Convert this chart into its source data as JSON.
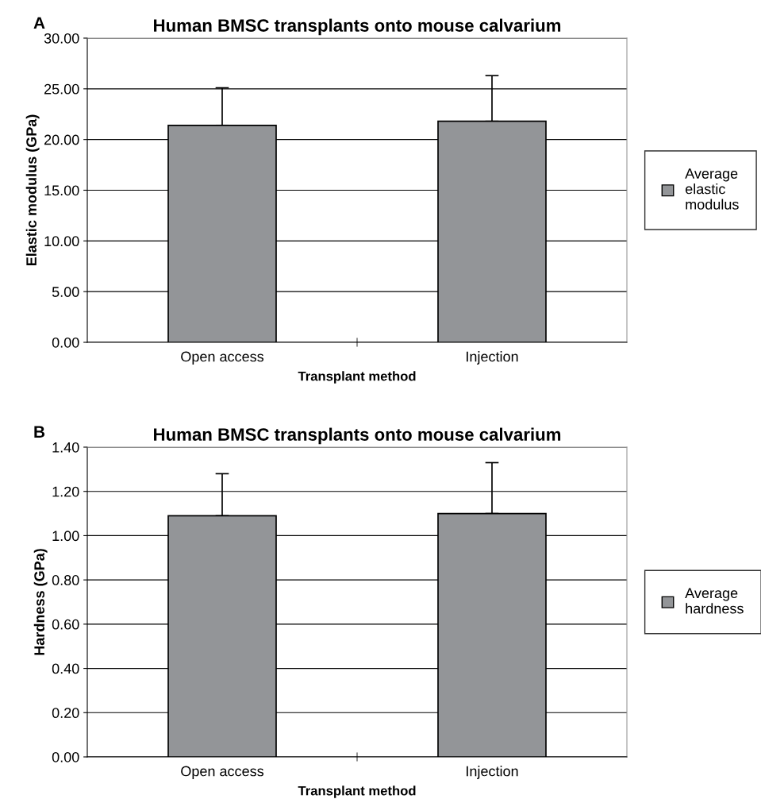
{
  "chart_data": [
    {
      "type": "bar",
      "title": "Human BMSC transplants onto mouse calvarium",
      "xlabel": "Transplant method",
      "ylabel": "Elastic modulus (GPa)",
      "annotations": [
        "A"
      ],
      "categories": [
        "Open access",
        "Injection"
      ],
      "series": [
        {
          "name": "Average\nelastic\nmodulus",
          "color": "#939598",
          "values": [
            21.4,
            21.8
          ],
          "errors": [
            [
              21.4,
              25.1
            ],
            [
              21.8,
              26.3
            ]
          ]
        }
      ],
      "ylim": [
        0,
        30
      ],
      "yticks": [
        {
          "value": 0,
          "label": "0.00"
        },
        {
          "value": 5,
          "label": "5.00"
        },
        {
          "value": 10,
          "label": "10.00"
        },
        {
          "value": 15,
          "label": "15.00"
        },
        {
          "value": 20,
          "label": "20.00"
        },
        {
          "value": 25,
          "label": "25.00"
        },
        {
          "value": 30,
          "label": "30.00"
        }
      ],
      "grid": "y",
      "legend": "right"
    },
    {
      "type": "bar",
      "title": "Human BMSC transplants onto mouse calvarium",
      "xlabel": "Transplant method",
      "ylabel": "Hardness (GPa)",
      "annotations": [
        "B"
      ],
      "categories": [
        "Open access",
        "Injection"
      ],
      "series": [
        {
          "name": "Average\nhardness",
          "color": "#939598",
          "values": [
            1.09,
            1.1
          ],
          "errors": [
            [
              1.09,
              1.28
            ],
            [
              1.1,
              1.33
            ]
          ]
        }
      ],
      "ylim": [
        0,
        1.4
      ],
      "yticks": [
        {
          "value": 0,
          "label": "0.00"
        },
        {
          "value": 0.2,
          "label": "0.20"
        },
        {
          "value": 0.4,
          "label": "0.40"
        },
        {
          "value": 0.6,
          "label": "0.60"
        },
        {
          "value": 0.8,
          "label": "0.80"
        },
        {
          "value": 1.0,
          "label": "1.00"
        },
        {
          "value": 1.2,
          "label": "1.20"
        },
        {
          "value": 1.4,
          "label": "1.40"
        }
      ],
      "grid": "y",
      "legend": "right"
    }
  ]
}
